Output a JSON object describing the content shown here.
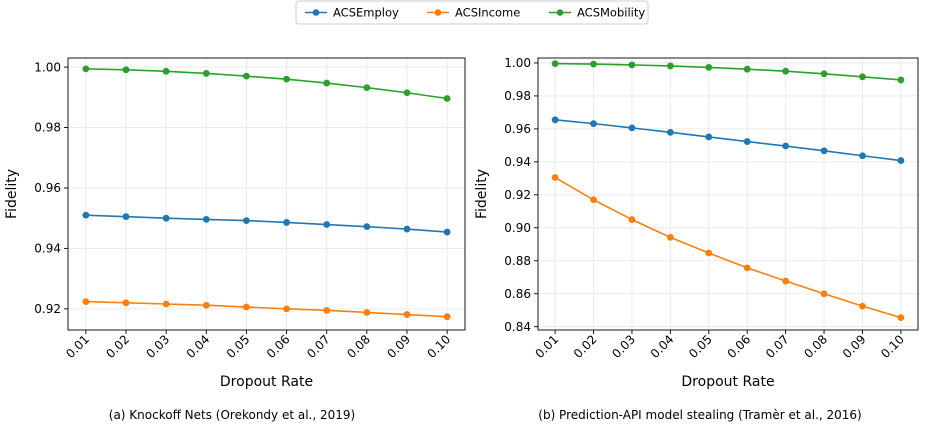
{
  "legend": {
    "entries": [
      {
        "name": "ACSEmploy",
        "color": "#1f77b4"
      },
      {
        "name": "ACSIncome",
        "color": "#ff7f0e"
      },
      {
        "name": "ACSMobility",
        "color": "#2ca02c"
      }
    ],
    "placement": "top-center"
  },
  "chart_data": [
    {
      "type": "line",
      "caption": "(a) Knockoff Nets (Orekondy et al., 2019)",
      "xlabel": "Dropout Rate",
      "ylabel": "Fidelity",
      "x": [
        "0.01",
        "0.02",
        "0.03",
        "0.04",
        "0.05",
        "0.06",
        "0.07",
        "0.08",
        "0.09",
        "0.10"
      ],
      "ylim": [
        0.913,
        1.003
      ],
      "yticks": [
        "0.92",
        "0.94",
        "0.96",
        "0.98",
        "1.00"
      ],
      "grid": true,
      "series": [
        {
          "name": "ACSEmploy",
          "color": "#1f77b4",
          "values": [
            0.951,
            0.9505,
            0.95,
            0.9496,
            0.9492,
            0.9486,
            0.9479,
            0.9472,
            0.9464,
            0.9454
          ]
        },
        {
          "name": "ACSIncome",
          "color": "#ff7f0e",
          "values": [
            0.9224,
            0.922,
            0.9216,
            0.9212,
            0.9206,
            0.92,
            0.9195,
            0.9188,
            0.9181,
            0.9174
          ]
        },
        {
          "name": "ACSMobility",
          "color": "#2ca02c",
          "values": [
            0.9994,
            0.9991,
            0.9986,
            0.9979,
            0.997,
            0.996,
            0.9947,
            0.9932,
            0.9915,
            0.9896
          ]
        }
      ]
    },
    {
      "type": "line",
      "caption": "(b) Prediction-API model stealing (Tramèr et al., 2016)",
      "xlabel": "Dropout Rate",
      "ylabel": "Fidelity",
      "x": [
        "0.01",
        "0.02",
        "0.03",
        "0.04",
        "0.05",
        "0.06",
        "0.07",
        "0.08",
        "0.09",
        "0.10"
      ],
      "ylim": [
        0.838,
        1.003
      ],
      "yticks": [
        "0.84",
        "0.86",
        "0.88",
        "0.90",
        "0.92",
        "0.94",
        "0.96",
        "0.98",
        "1.00"
      ],
      "grid": true,
      "series": [
        {
          "name": "ACSEmploy",
          "color": "#1f77b4",
          "values": [
            0.9655,
            0.9632,
            0.9606,
            0.9579,
            0.9551,
            0.9523,
            0.9496,
            0.9467,
            0.9437,
            0.9408
          ]
        },
        {
          "name": "ACSIncome",
          "color": "#ff7f0e",
          "values": [
            0.9305,
            0.917,
            0.905,
            0.8942,
            0.8847,
            0.8757,
            0.8677,
            0.86,
            0.8525,
            0.8455
          ]
        },
        {
          "name": "ACSMobility",
          "color": "#2ca02c",
          "values": [
            0.9996,
            0.9993,
            0.9988,
            0.9982,
            0.9973,
            0.9962,
            0.995,
            0.9934,
            0.9916,
            0.9897
          ]
        }
      ]
    }
  ]
}
